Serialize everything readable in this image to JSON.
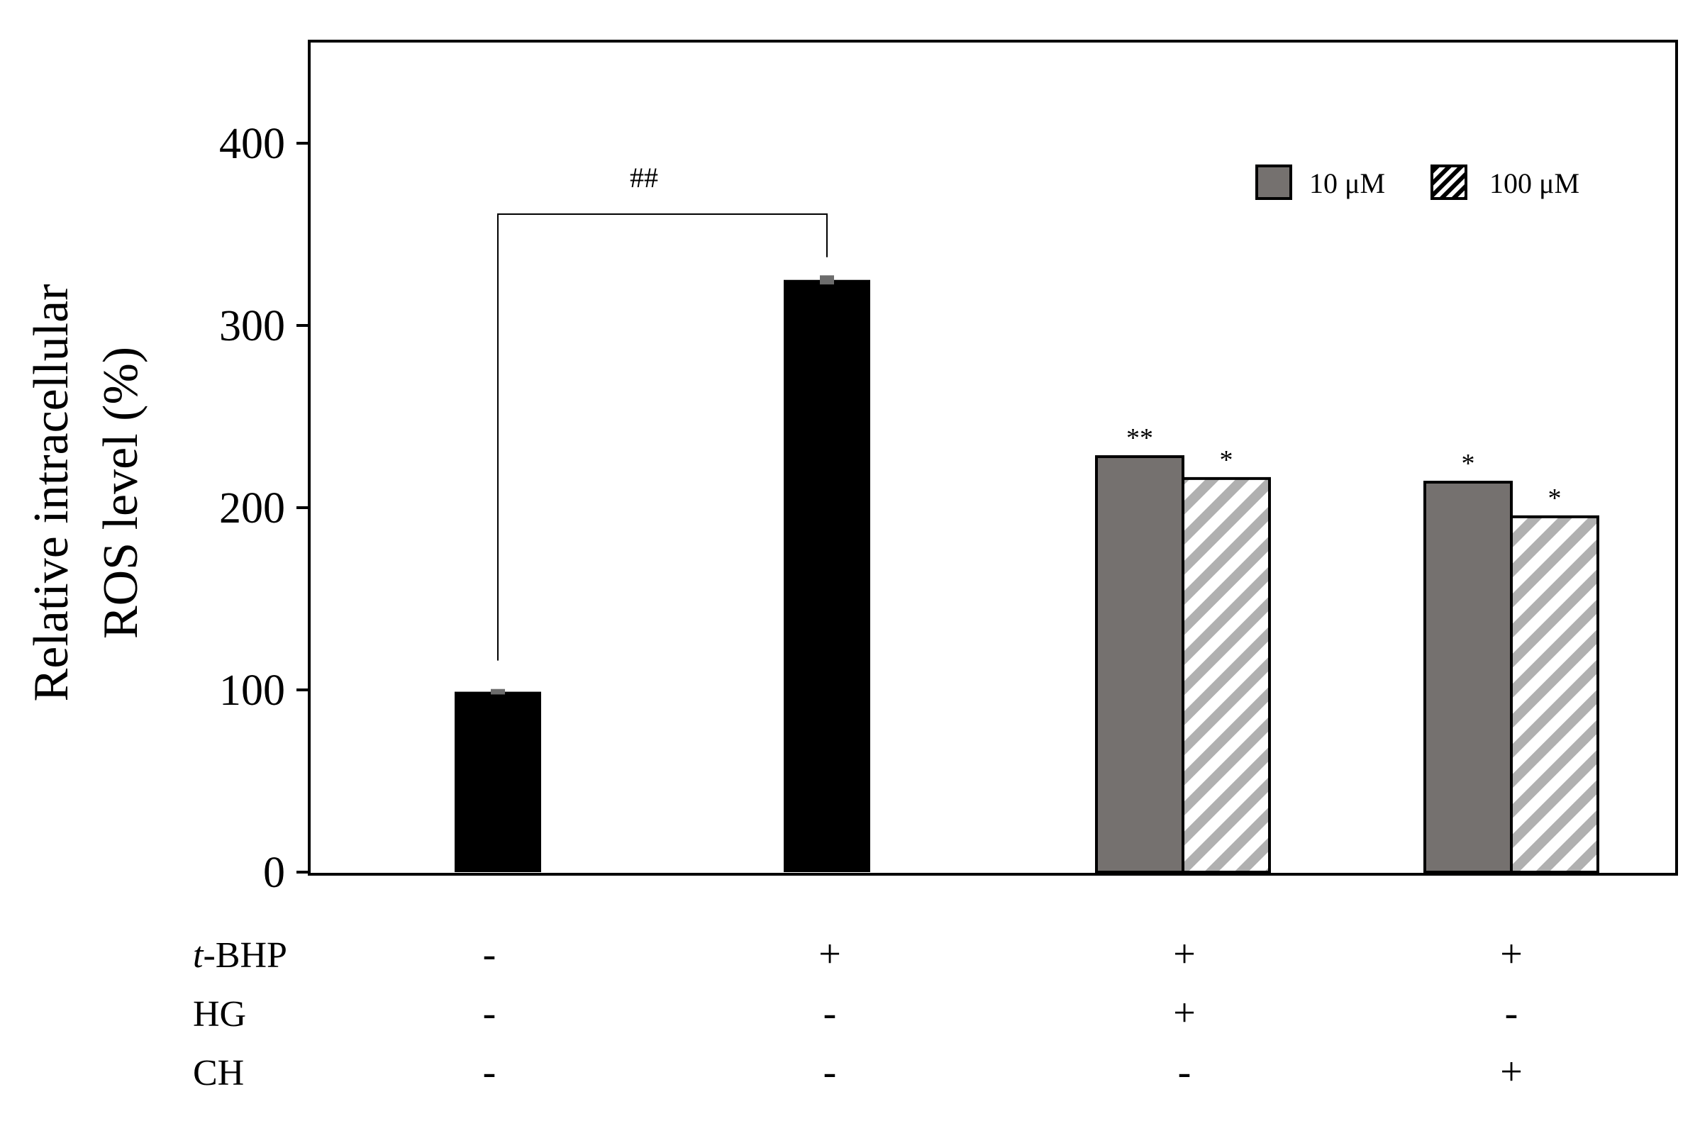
{
  "chart_data": {
    "type": "bar",
    "ylabel_line1": "Relative intracellular",
    "ylabel_line2": "ROS level (%)",
    "ylim": [
      0,
      460
    ],
    "yticks": [
      0,
      100,
      200,
      300,
      400
    ],
    "legend": {
      "placement": "top-right",
      "entries": [
        {
          "name": "10 μM",
          "color": "#75716f",
          "pattern": "solid"
        },
        {
          "name": "100 μM",
          "color": "#b0b0b0",
          "pattern": "hatch"
        }
      ]
    },
    "groups": [
      {
        "bars": [
          {
            "value": 99,
            "error": 1.5,
            "style": "black"
          }
        ]
      },
      {
        "bars": [
          {
            "value": 325,
            "error": 2.5,
            "style": "black"
          }
        ]
      },
      {
        "bars": [
          {
            "value": 228,
            "style": "gray",
            "annotation": "**"
          },
          {
            "value": 216,
            "style": "hatch",
            "annotation": "*"
          }
        ]
      },
      {
        "bars": [
          {
            "value": 214,
            "style": "gray",
            "annotation": "*"
          },
          {
            "value": 195,
            "style": "hatch",
            "annotation": "*"
          }
        ]
      }
    ],
    "comparison": {
      "from_group": 0,
      "to_group": 1,
      "label": "##"
    },
    "treatments": [
      {
        "name_italic": "t",
        "name": "-BHP",
        "values": [
          "-",
          "+",
          "+",
          "+"
        ]
      },
      {
        "name_italic": "",
        "name": "HG",
        "values": [
          "-",
          "-",
          "+",
          "-"
        ]
      },
      {
        "name_italic": "",
        "name": "CH",
        "values": [
          "-",
          "-",
          "-",
          "+"
        ]
      }
    ]
  }
}
